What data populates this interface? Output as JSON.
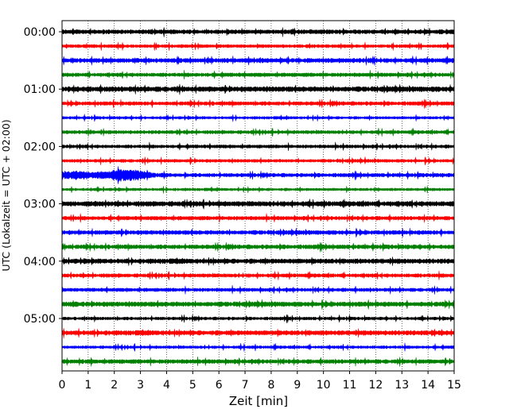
{
  "chart_data": {
    "type": "line",
    "xlabel": "Zeit  [min]",
    "ylabel": "UTC (Lokalzeit = UTC + 02:00)",
    "xlim": [
      0,
      15
    ],
    "x_ticks": [
      "0",
      "1",
      "2",
      "3",
      "4",
      "5",
      "6",
      "7",
      "8",
      "9",
      "10",
      "11",
      "12",
      "13",
      "14",
      "15"
    ],
    "y_ticks": [
      "00:00",
      "01:00",
      "02:00",
      "03:00",
      "04:00",
      "05:00"
    ],
    "grid": "vertical dotted at each minute",
    "trace_interval_min": 15,
    "trace_start": "00:00",
    "trace_count": 24,
    "trace_colors": [
      "#000000",
      "#ff0000",
      "#0000ff",
      "#008000"
    ],
    "events": [
      {
        "trace_index": 10,
        "x_start": 0.0,
        "x_end": 4.0,
        "peak_x": 2.5,
        "description": ""
      }
    ]
  }
}
